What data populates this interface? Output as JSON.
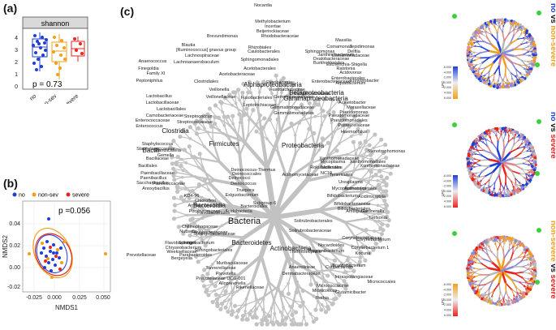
{
  "panel_a": {
    "label": "(a)",
    "title": "shannon",
    "y_ticks": [
      "0",
      "1",
      "2",
      "3",
      "4"
    ],
    "x_ticks": [
      "no",
      "non-sev",
      "severe"
    ],
    "p_text": "p = 0.73"
  },
  "panel_b": {
    "label": "(b)",
    "legend": [
      {
        "name": "no",
        "color": "#1f3fd6"
      },
      {
        "name": "non-sev",
        "color": "#f0a01c"
      },
      {
        "name": "severe",
        "color": "#e8251c"
      }
    ],
    "p_text": "p =0.056",
    "y_label": "NMDS2",
    "x_label": "NMDS1",
    "y_ticks": [
      "0.04",
      "0.02",
      "0.00",
      "-0.02"
    ],
    "x_ticks": [
      "-0.025",
      "0.000",
      "0.025",
      "0.050"
    ]
  },
  "panel_c": {
    "label": "(c)",
    "center": "Bacteria",
    "phyla": [
      "Firmicutes",
      "Proteobacteria",
      "Actinobacteria",
      "Bacteroidetes"
    ],
    "classes": [
      "Bacilli",
      "Clostridia",
      "Gammaproteobacteria",
      "Alphaproteobacteria",
      "Betaproteobacteria",
      "Bacteroidia"
    ],
    "taxa": [
      "Nocardia",
      "Methylobacterium",
      "Incertae",
      "Beijerinckiaceae",
      "Brevundimonas",
      "Rhodobacteraceae",
      "Blautia",
      "[Ruminococcus] gnavus group",
      "Lachnospiraceae",
      "Lachnoanaerobaculum",
      "Anaerococcus",
      "Finegoldia",
      "Family XI",
      "Peptoniphilus",
      "Clostridiales",
      "Rhizobiales",
      "Caulobacterales",
      "Sphingomonadales",
      "Acetobacterales",
      "Acetobacteraceae",
      "Massilia",
      "Comamonas",
      "Tepidimonas",
      "Sphingomonas",
      "Janthinobacterium",
      "Oxalobacteraceae",
      "Burkholderiales",
      "Delftia",
      "Comamonadaceae",
      "Escherichia-Shigella",
      "Ralstonia",
      "Acidovorax",
      "Enterobacterales",
      "Enhydrobacter",
      "Veillonella",
      "Veillonellaceae",
      "Lactobacillus",
      "Lactobacillaceae",
      "Lactobacillales",
      "Carnobacteriaceae",
      "Enterococcaceae",
      "Enterococcus",
      "Streptococcus",
      "Streptococcaceae",
      "Staphylococcus",
      "Staphylococcaceae",
      "Gemella",
      "Bacillaceae",
      "Bacillales",
      "Paenibacillaceae",
      "Paenibacillus",
      "Saccharibacillus",
      "Planococcaceae",
      "Anoxybacillus",
      "Granulicatella",
      "Fusobacteria",
      "Fusobacteriaceae",
      "Fusobacteriales",
      "Leptotrichiaceae",
      "Gemmatimonadaceae",
      "Gemmatimonadetes",
      "Rokubacteriales",
      "NC10",
      "Xanthomonadales",
      "Xanthomonadaceae",
      "Stenotrophomonas",
      "Pseudomonas",
      "Pseudomonadaceae",
      "Pseudomonadales",
      "Moraxellaceae",
      "Acinetobacter",
      "Pasteurellaceae",
      "Haemophilus",
      "Mycoplasma",
      "Mollicutes",
      "Tenericutes",
      "Ureaplasma",
      "Mycoplasmatales",
      "Deinococcus-Thermus",
      "Deinococcales",
      "Deinococci",
      "Deinococcus",
      "Truepera",
      "Exiguobacterium",
      "Chloroflexi",
      "Armatimonadetes",
      "Acidobacteria",
      "Subgroup 6",
      "Actinomycetales",
      "Bifidobacterium",
      "Bifidobacteriaceae",
      "Bifidobacteriales",
      "Gardnerella",
      "Leifsonia",
      "Corynebacteriaceae",
      "Corynebacterium",
      "Corynebacterium 1",
      "Kocuria",
      "Micrococcales",
      "Micrococcaceae",
      "Micrococcus",
      "Rothia",
      "Nocardioides",
      "Propionibacterium",
      "Cutibacterium",
      "Thermoleophilia",
      "Solirubrobacterales",
      "Solirubrobacteraceae",
      "Acidimicrobiia",
      "Bacteroidales",
      "Flavobacteriales",
      "Flavobacteriaceae",
      "Flavobacterium",
      "Chryseobacterium",
      "Weeksellaceae",
      "Sphingobacteriales",
      "Sphingobacteriaceae",
      "Sphingobacterium",
      "Nubsella",
      "Bergeyella",
      "Prevotellaceae",
      "Prevotella",
      "Prevotellaceae UCG-001",
      "Alloprevotella",
      "Rikenellaceae",
      "Muribaculaceae",
      "Tannerellaceae",
      "Parabacteroides",
      "Porphyromonas",
      "Chitinophagaceae",
      "Anaerolineae",
      "Dermabacteraceae",
      "Brachybacterium",
      "Intrasporangiaceae",
      "Glutamicibacter",
      "KD4-96",
      "Ambiguous",
      "Enterobacteriaceae",
      "Aquabacterium",
      "Ruminococcaceae",
      "Gemmatimonadales",
      "Xanthomonadaceae",
      "Actinomycetaceae",
      "Actinomyces"
    ]
  },
  "right_panels": [
    {
      "title_a": "no",
      "title_vs": " vs ",
      "title_b": "non-severe",
      "color_a": "#1f3fd6",
      "color_b": "#f0a01c",
      "legend_label": "LFC",
      "legend_ticks": [
        "-6.000",
        "-4.000",
        "-2.000",
        "0.000",
        "2.000",
        "4.000",
        "6.000"
      ]
    },
    {
      "title_a": "no",
      "title_vs": " vs ",
      "title_b": "severe",
      "color_a": "#1f3fd6",
      "color_b": "#e8251c",
      "legend_label": "LFC",
      "legend_ticks": [
        "-6.000",
        "-4.000",
        "-2.000",
        "0.000",
        "2.000",
        "4.000",
        "6.000"
      ]
    },
    {
      "title_a": "non-severe",
      "title_vs": " vs ",
      "title_b": "severe",
      "color_a": "#f0a01c",
      "color_b": "#e8251c",
      "legend_label": "LFC",
      "legend_ticks": [
        "-6.000",
        "-4.000",
        "-2.000",
        "0.000",
        "2.000",
        "4.000",
        "6.000"
      ]
    }
  ]
}
